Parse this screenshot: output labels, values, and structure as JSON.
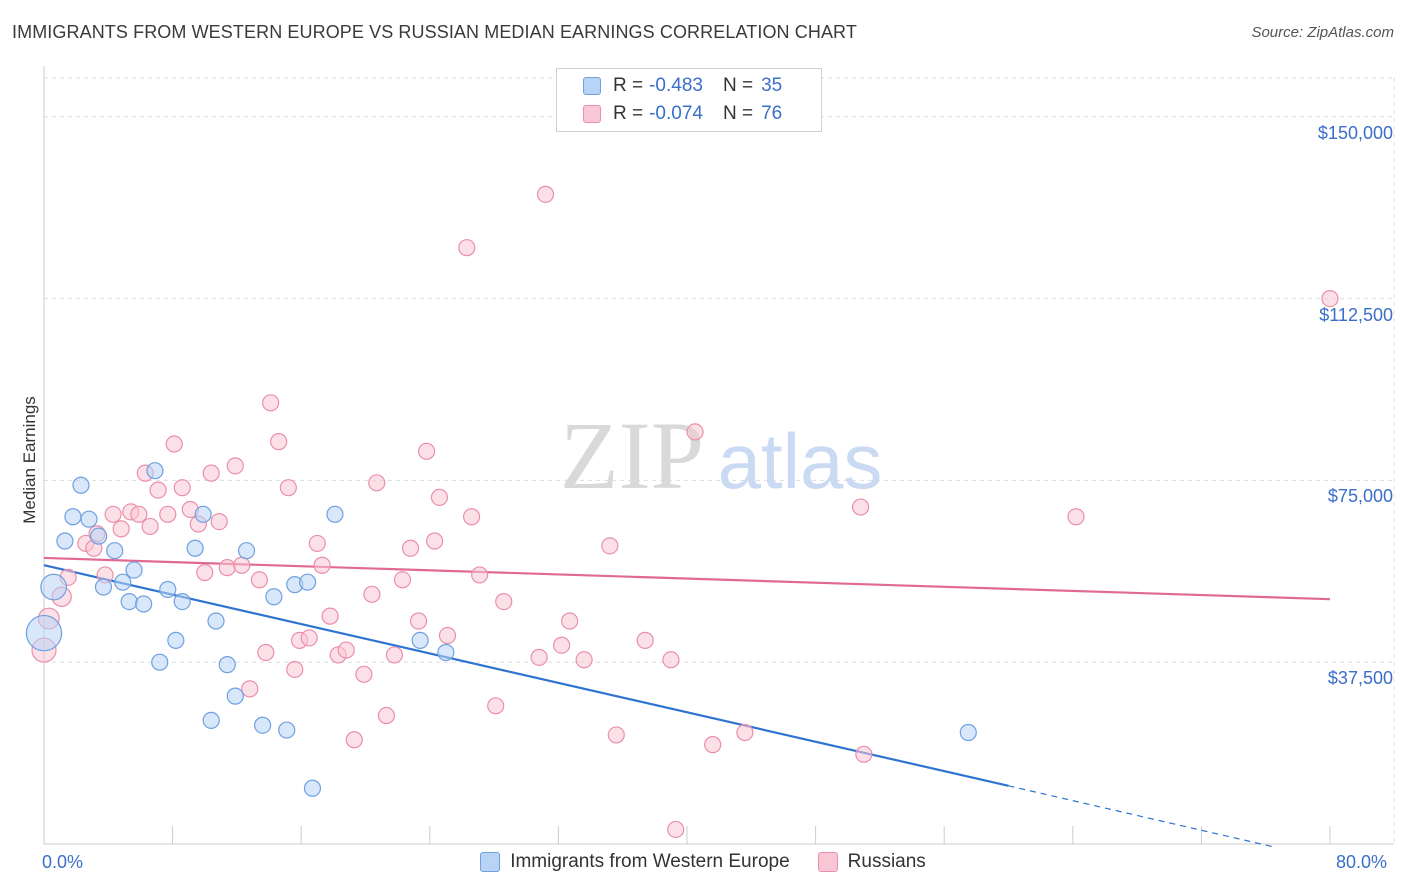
{
  "title": "IMMIGRANTS FROM WESTERN EUROPE VS RUSSIAN MEDIAN EARNINGS CORRELATION CHART",
  "source": "Source: ZipAtlas.com",
  "watermark": {
    "zip": "ZIP",
    "atlas": "atlas"
  },
  "colors": {
    "blue_fill": "#b8d3f5",
    "blue_stroke": "#6fa1e0",
    "blue_line": "#2f74d0",
    "pink_fill": "#f9c6d5",
    "pink_stroke": "#ea8fab",
    "pink_line": "#e06a92",
    "grid": "#dddddd",
    "axis_text": "#3a6fc9"
  },
  "legend": {
    "rows": [
      {
        "r_label": "R =",
        "r_value": "-0.483",
        "n_label": "N =",
        "n_value": "35"
      },
      {
        "r_label": "R =",
        "r_value": "-0.074",
        "n_label": "N =",
        "n_value": "76"
      }
    ]
  },
  "chart_data": {
    "type": "scatter",
    "title": "IMMIGRANTS FROM WESTERN EUROPE VS RUSSIAN MEDIAN EARNINGS CORRELATION CHART",
    "xlabel": "",
    "ylabel": "Median Earnings",
    "xlim": [
      0,
      80
    ],
    "ylim": [
      0,
      158000
    ],
    "x_tick_labels": [
      "0.0%",
      "80.0%"
    ],
    "y_ticks": [
      37500,
      75000,
      112500,
      150000
    ],
    "y_tick_labels": [
      "$37,500",
      "$75,000",
      "$112,500",
      "$150,000"
    ],
    "series": [
      {
        "name": "Immigrants from Western Europe",
        "points": [
          [
            0.6,
            53000,
            1.6
          ],
          [
            0.0,
            43500,
            2.2
          ],
          [
            1.3,
            62500,
            1
          ],
          [
            1.8,
            67500,
            1
          ],
          [
            2.3,
            74000,
            1
          ],
          [
            2.8,
            67000,
            1
          ],
          [
            3.4,
            63500,
            1
          ],
          [
            3.7,
            53000,
            1
          ],
          [
            4.4,
            60500,
            1
          ],
          [
            4.9,
            54000,
            1
          ],
          [
            5.3,
            50000,
            1
          ],
          [
            5.6,
            56500,
            1
          ],
          [
            6.2,
            49500,
            1
          ],
          [
            6.9,
            77000,
            1
          ],
          [
            7.2,
            37500,
            1
          ],
          [
            7.7,
            52500,
            1
          ],
          [
            8.2,
            42000,
            1
          ],
          [
            8.6,
            50000,
            1
          ],
          [
            9.4,
            61000,
            1
          ],
          [
            9.9,
            68000,
            1
          ],
          [
            10.4,
            25500,
            1
          ],
          [
            10.7,
            46000,
            1
          ],
          [
            11.4,
            37000,
            1
          ],
          [
            11.9,
            30500,
            1
          ],
          [
            12.6,
            60500,
            1
          ],
          [
            13.6,
            24500,
            1
          ],
          [
            14.3,
            51000,
            1
          ],
          [
            15.1,
            23500,
            1
          ],
          [
            15.6,
            53500,
            1
          ],
          [
            16.4,
            54000,
            1
          ],
          [
            16.7,
            11500,
            1
          ],
          [
            18.1,
            68000,
            1
          ],
          [
            23.4,
            42000,
            1
          ],
          [
            25.0,
            39500,
            1
          ],
          [
            57.5,
            23000,
            1
          ]
        ]
      },
      {
        "name": "Russians",
        "points": [
          [
            0.0,
            40000,
            1.5
          ],
          [
            0.3,
            46500,
            1.3
          ],
          [
            1.1,
            51000,
            1.2
          ],
          [
            1.5,
            55000,
            1
          ],
          [
            2.6,
            62000,
            1
          ],
          [
            3.1,
            61000,
            1
          ],
          [
            3.3,
            64000,
            1
          ],
          [
            3.8,
            55500,
            1
          ],
          [
            4.3,
            68000,
            1
          ],
          [
            4.8,
            65000,
            1
          ],
          [
            5.4,
            68500,
            1
          ],
          [
            5.9,
            68000,
            1
          ],
          [
            6.3,
            76500,
            1
          ],
          [
            6.6,
            65500,
            1
          ],
          [
            7.1,
            73000,
            1
          ],
          [
            7.7,
            68000,
            1
          ],
          [
            8.1,
            82500,
            1
          ],
          [
            8.6,
            73500,
            1
          ],
          [
            9.1,
            69000,
            1
          ],
          [
            9.6,
            66000,
            1
          ],
          [
            10.0,
            56000,
            1
          ],
          [
            10.4,
            76500,
            1
          ],
          [
            10.9,
            66500,
            1
          ],
          [
            11.4,
            57000,
            1
          ],
          [
            11.9,
            78000,
            1
          ],
          [
            12.3,
            57500,
            1
          ],
          [
            12.8,
            32000,
            1
          ],
          [
            13.4,
            54500,
            1
          ],
          [
            13.8,
            39500,
            1
          ],
          [
            14.1,
            91000,
            1
          ],
          [
            14.6,
            83000,
            1
          ],
          [
            15.2,
            73500,
            1
          ],
          [
            15.6,
            36000,
            1
          ],
          [
            15.9,
            42000,
            1
          ],
          [
            16.5,
            42500,
            1
          ],
          [
            17.0,
            62000,
            1
          ],
          [
            17.3,
            57500,
            1
          ],
          [
            17.8,
            47000,
            1
          ],
          [
            18.3,
            39000,
            1
          ],
          [
            18.8,
            40000,
            1
          ],
          [
            19.3,
            21500,
            1
          ],
          [
            19.9,
            35000,
            1
          ],
          [
            20.4,
            51500,
            1
          ],
          [
            20.7,
            74500,
            1
          ],
          [
            21.3,
            26500,
            1
          ],
          [
            21.8,
            39000,
            1
          ],
          [
            22.3,
            54500,
            1
          ],
          [
            22.8,
            61000,
            1
          ],
          [
            23.3,
            46000,
            1
          ],
          [
            23.8,
            81000,
            1
          ],
          [
            24.3,
            62500,
            1
          ],
          [
            24.6,
            71500,
            1
          ],
          [
            25.1,
            43000,
            1
          ],
          [
            26.3,
            123000,
            1
          ],
          [
            26.6,
            67500,
            1
          ],
          [
            27.1,
            55500,
            1
          ],
          [
            28.1,
            28500,
            1
          ],
          [
            28.6,
            50000,
            1
          ],
          [
            30.8,
            38500,
            1
          ],
          [
            31.2,
            134000,
            1
          ],
          [
            32.2,
            41000,
            1
          ],
          [
            32.7,
            46000,
            1
          ],
          [
            33.6,
            38000,
            1
          ],
          [
            35.2,
            61500,
            1
          ],
          [
            35.6,
            22500,
            1
          ],
          [
            37.4,
            42000,
            1
          ],
          [
            39.0,
            38000,
            1
          ],
          [
            39.3,
            3000,
            1
          ],
          [
            40.5,
            85000,
            1
          ],
          [
            41.6,
            20500,
            1
          ],
          [
            43.6,
            23000,
            1
          ],
          [
            50.8,
            69500,
            1
          ],
          [
            51.0,
            18500,
            1
          ],
          [
            64.2,
            67500,
            1
          ],
          [
            80.0,
            112500,
            1
          ],
          [
            47.0,
            60000,
            0
          ]
        ]
      }
    ],
    "trend_lines": [
      {
        "series": "Immigrants from Western Europe",
        "x": [
          0,
          60
        ],
        "y": [
          57500,
          12000
        ],
        "dashed_extension_x": [
          60,
          76.5
        ],
        "dashed_extension_y": [
          12000,
          -600
        ]
      },
      {
        "series": "Russians",
        "x": [
          0,
          80
        ],
        "y": [
          59000,
          50500
        ]
      }
    ]
  }
}
